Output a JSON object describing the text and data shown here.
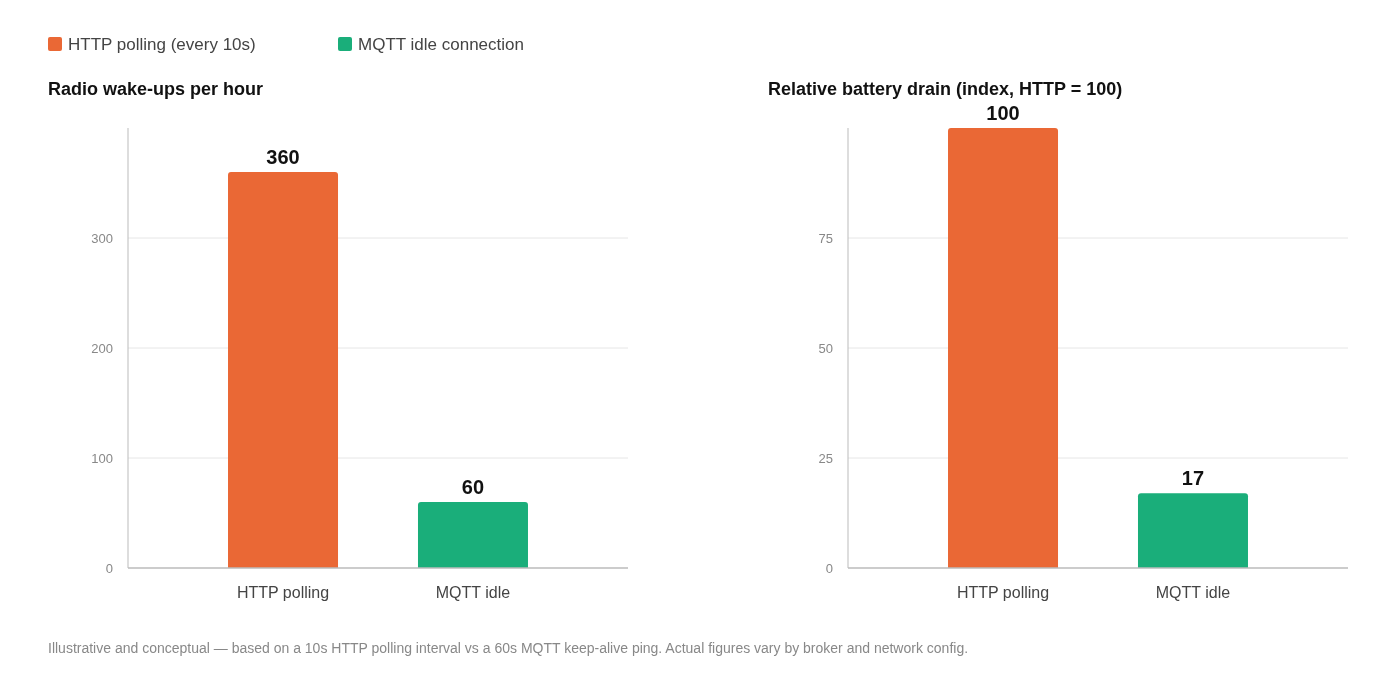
{
  "chart_data": [
    {
      "type": "bar",
      "title": "Radio wake-ups per hour",
      "categories": [
        "HTTP polling",
        "MQTT idle"
      ],
      "stacked": true,
      "series": [
        {
          "name": "HTTP polling (every 10s)",
          "color": "#ea6835",
          "values": [
            360,
            null
          ]
        },
        {
          "name": "MQTT idle connection",
          "color": "#1aae7a",
          "values": [
            null,
            60
          ]
        }
      ],
      "ylim": [
        0,
        400
      ],
      "yticks": [
        0,
        100,
        200,
        300
      ],
      "grid": "y",
      "legend": "top left",
      "data_labels": true,
      "annotations": [
        "Illustrative and conceptual — based on a 10s HTTP polling interval vs a 60s MQTT keep-alive ping. Actual figures vary by broker and network config."
      ]
    },
    {
      "type": "bar",
      "title": "Relative battery drain (index, HTTP = 100)",
      "categories": [
        "HTTP polling",
        "MQTT idle"
      ],
      "stacked": true,
      "series": [
        {
          "color": "#ea6835",
          "values": [
            100,
            null
          ]
        },
        {
          "color": "#1aae7a",
          "values": [
            null,
            17
          ]
        }
      ],
      "ylim": [
        0,
        100
      ],
      "yticks": [
        0,
        25,
        50,
        75
      ],
      "grid": "y",
      "data_labels": true
    }
  ]
}
